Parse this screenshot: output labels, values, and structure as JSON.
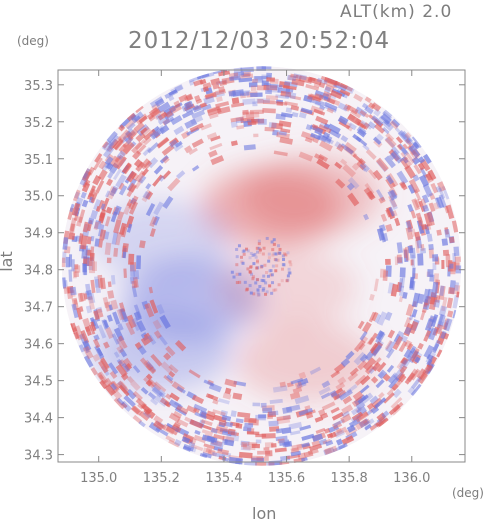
{
  "header": {
    "altitude_label": "ALT(km)",
    "altitude_value": "2.0",
    "timestamp": "2012/12/03 20:52:04"
  },
  "chart_data": {
    "type": "heatmap",
    "title": "2012/12/03 20:52:04",
    "xlabel": "lon",
    "ylabel": "lat",
    "x_unit": "(deg)",
    "y_unit": "(deg)",
    "xlim": [
      134.87,
      136.17
    ],
    "ylim": [
      34.28,
      35.34
    ],
    "x_ticks": [
      135.0,
      135.2,
      135.4,
      135.6,
      135.8,
      136.0
    ],
    "x_tick_labels": [
      "135.0",
      "135.2",
      "135.4",
      "135.6",
      "135.8",
      "136.0"
    ],
    "y_ticks": [
      34.3,
      34.4,
      34.5,
      34.6,
      34.7,
      34.8,
      34.9,
      35.0,
      35.1,
      35.2,
      35.3
    ],
    "y_tick_labels": [
      "34.3",
      "34.4",
      "34.5",
      "34.6",
      "34.7",
      "34.8",
      "34.9",
      "35.0",
      "35.1",
      "35.2",
      "35.3"
    ],
    "radar_center": {
      "lon": 135.52,
      "lat": 34.81
    },
    "radar_radius_deg_lat": 0.54,
    "colors": {
      "positive": "#e06060",
      "negative": "#6f7be0",
      "neutral": "#ffffff"
    },
    "regions": [
      {
        "sign": "positive",
        "lon": 135.55,
        "lat": 34.97,
        "intensity": 0.45
      },
      {
        "sign": "positive",
        "lon": 135.68,
        "lat": 35.0,
        "intensity": 0.35
      },
      {
        "sign": "negative",
        "lon": 135.2,
        "lat": 34.88,
        "intensity": 0.25
      },
      {
        "sign": "negative",
        "lon": 135.3,
        "lat": 34.72,
        "intensity": 0.45
      },
      {
        "sign": "negative",
        "lon": 135.2,
        "lat": 34.58,
        "intensity": 0.35
      },
      {
        "sign": "positive",
        "lon": 135.66,
        "lat": 34.55,
        "intensity": 0.25
      },
      {
        "sign": "positive",
        "lon": 135.6,
        "lat": 34.75,
        "intensity": 0.2
      }
    ]
  }
}
